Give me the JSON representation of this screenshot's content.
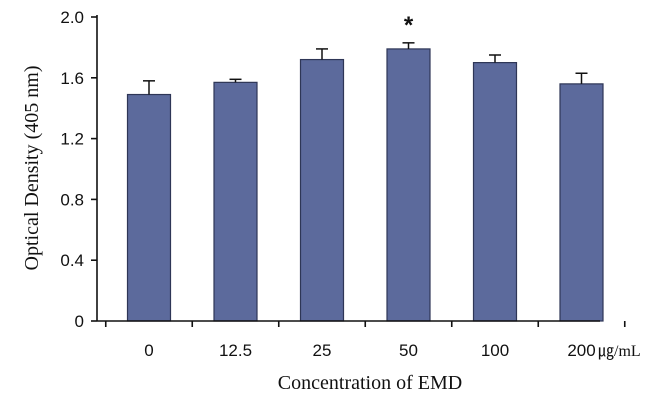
{
  "chart_data": {
    "type": "bar",
    "categories": [
      "0",
      "12.5",
      "25",
      "50",
      "100",
      "200"
    ],
    "values": [
      1.49,
      1.57,
      1.72,
      1.79,
      1.7,
      1.56
    ],
    "errors": [
      0.09,
      0.02,
      0.07,
      0.04,
      0.05,
      0.07
    ],
    "annotations": [
      {
        "category": "50",
        "text": "*"
      }
    ],
    "xlabel": "Concentration of EMD",
    "x_unit": "㎍/mL",
    "ylabel": "Optical Density (405 nm)",
    "ylim": [
      0,
      2.0
    ],
    "yticks": [
      0,
      0.4,
      0.8,
      1.2,
      1.6,
      2.0
    ],
    "ytick_labels": [
      "0",
      "0.4",
      "0.8",
      "1.2",
      "1.6",
      "2.0"
    ],
    "grid": false,
    "colors": {
      "bar_fill": "#5c6a9c",
      "bar_stroke": "#2e3656",
      "axis": "#111111"
    }
  }
}
